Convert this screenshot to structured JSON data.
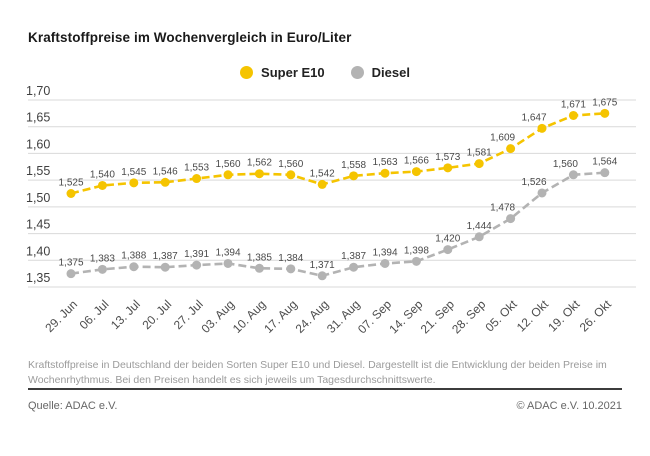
{
  "title": "Kraftstoffpreise im Wochenvergleich in Euro/Liter",
  "legend": [
    {
      "label": "Super E10",
      "color": "#f5c400"
    },
    {
      "label": "Diesel",
      "color": "#b3b3b3"
    }
  ],
  "chart_data": {
    "type": "line",
    "title": "Kraftstoffpreise im Wochenvergleich in Euro/Liter",
    "x": [
      "29. Jun",
      "06. Jul",
      "13. Jul",
      "20. Jul",
      "27. Jul",
      "03. Aug",
      "10. Aug",
      "17. Aug",
      "24. Aug",
      "31. Aug",
      "07. Sep",
      "14. Sep",
      "21. Sep",
      "28. Sep",
      "05. Okt",
      "12. Okt",
      "19. Okt",
      "26. Okt"
    ],
    "series": [
      {
        "name": "Super E10",
        "color": "#f5c400",
        "values": [
          1.525,
          1.54,
          1.545,
          1.546,
          1.553,
          1.56,
          1.562,
          1.56,
          1.542,
          1.558,
          1.563,
          1.566,
          1.573,
          1.581,
          1.609,
          1.647,
          1.671,
          1.675
        ],
        "labels": [
          "1,525",
          "1,540",
          "1,545",
          "1,546",
          "1,553",
          "1,560",
          "1,562",
          "1,560",
          "1,542",
          "1,558",
          "1,563",
          "1,566",
          "1,573",
          "1,581",
          "1,609",
          "1,647",
          "1,671",
          "1,675"
        ]
      },
      {
        "name": "Diesel",
        "color": "#b3b3b3",
        "values": [
          1.375,
          1.383,
          1.388,
          1.387,
          1.391,
          1.394,
          1.385,
          1.384,
          1.371,
          1.387,
          1.394,
          1.398,
          1.42,
          1.444,
          1.478,
          1.526,
          1.56,
          1.564
        ],
        "labels": [
          "1,375",
          "1,383",
          "1,388",
          "1,387",
          "1,391",
          "1,394",
          "1,385",
          "1,384",
          "1,371",
          "1,387",
          "1,394",
          "1,398",
          "1,420",
          "1,444",
          "1,478",
          "1,526",
          "1,560",
          "1,564"
        ]
      }
    ],
    "xlabel": "",
    "ylabel": "",
    "ylim": [
      1.35,
      1.7
    ],
    "yticks": [
      1.7,
      1.65,
      1.6,
      1.55,
      1.5,
      1.45,
      1.4,
      1.35
    ],
    "ytick_labels": [
      "1,70",
      "1,65",
      "1,60",
      "1,55",
      "1,50",
      "1,45",
      "1,40",
      "1,35"
    ],
    "grid": true,
    "line_style": "dashed",
    "legend_position": "top-center"
  },
  "footnote": "Kraftstoffpreise in Deutschland der beiden Sorten Super E10 und Diesel. Dargestellt ist die Entwicklung der beiden Preise im Wochenrhythmus. Bei den Preisen handelt es sich jeweils um Tagesdurchschnittswerte.",
  "source": "Quelle: ADAC e.V.",
  "copyright": "© ADAC e.V. 10.2021"
}
